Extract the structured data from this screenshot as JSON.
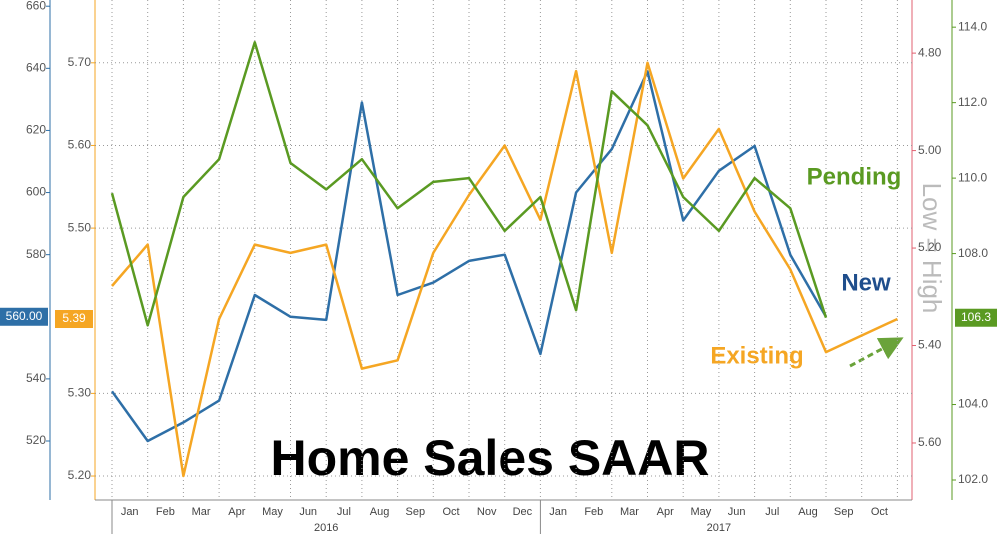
{
  "chart_data": {
    "type": "line",
    "title": "Home Sales SAAR",
    "annotation": "Low = High",
    "categories": [
      null,
      "Jan",
      "Feb",
      "Mar",
      "Apr",
      "May",
      "Jun",
      "Jul",
      "Aug",
      "Sep",
      "Oct",
      "Nov",
      "Dec",
      "Jan",
      "Feb",
      "Mar",
      "Apr",
      "May",
      "Jun",
      "Jul",
      "Aug",
      "Sep",
      "Oct"
    ],
    "years": [
      "2016",
      "2017"
    ],
    "ylim": [
      501,
      662
    ],
    "yticks": [
      520,
      540,
      580,
      600,
      620,
      640,
      660
    ],
    "y2lim": [
      5.171,
      5.776
    ],
    "y2ticks": [
      {
        "value": 5.2,
        "label": "5.20"
      },
      {
        "value": 5.3,
        "label": "5.30"
      },
      {
        "value": 5.5,
        "label": "5.50"
      },
      {
        "value": 5.6,
        "label": "5.60"
      },
      {
        "value": 5.7,
        "label": "5.70"
      }
    ],
    "y3lim": [
      5.717,
      4.691
    ],
    "y3ticks": [
      {
        "value": 4.8,
        "label": "4.80"
      },
      {
        "value": 5.0,
        "label": "5.00"
      },
      {
        "value": 5.2,
        "label": "5.20"
      },
      {
        "value": 5.4,
        "label": "5.40"
      },
      {
        "value": 5.6,
        "label": "5.60"
      }
    ],
    "y4lim": [
      101.47,
      114.72
    ],
    "y4ticks": [
      {
        "value": 102,
        "label": "102.0"
      },
      {
        "value": 104,
        "label": "104.0"
      },
      {
        "value": 108,
        "label": "108.0"
      },
      {
        "value": 110,
        "label": "110.0"
      },
      {
        "value": 112,
        "label": "112.0"
      },
      {
        "value": 114,
        "label": "114.0"
      }
    ],
    "grid": true,
    "series": [
      {
        "name": "New",
        "color": "#2e6fa7",
        "axis": "y",
        "values": [
          536,
          520,
          526,
          533,
          567,
          560,
          559,
          629,
          567,
          571,
          578,
          580,
          548,
          600,
          614,
          639,
          591,
          607,
          615,
          580,
          560,
          null,
          null
        ],
        "value_labels": [
          null,
          null,
          null,
          null,
          null,
          null,
          null,
          null,
          null,
          null,
          null,
          null,
          null,
          null,
          null,
          null,
          null,
          null,
          null,
          null,
          "560.00",
          null,
          null
        ]
      },
      {
        "name": "Existing",
        "color": "#f5a623",
        "axis": "y2",
        "values": [
          5.43,
          5.48,
          5.2,
          5.39,
          5.48,
          5.47,
          5.48,
          5.33,
          5.34,
          5.47,
          5.54,
          5.6,
          5.51,
          5.69,
          5.47,
          5.7,
          5.56,
          5.62,
          5.52,
          5.45,
          5.35,
          5.37,
          5.39
        ]
      },
      {
        "name": "Pending",
        "color": "#5a9a22",
        "axis": "y4",
        "values": [
          109.6,
          106.1,
          109.5,
          110.5,
          113.6,
          110.4,
          109.7,
          110.5,
          109.2,
          109.9,
          110.0,
          108.6,
          109.5,
          106.5,
          112.3,
          111.4,
          109.5,
          108.6,
          110.0,
          109.2,
          106.3,
          null,
          null
        ]
      }
    ]
  }
}
